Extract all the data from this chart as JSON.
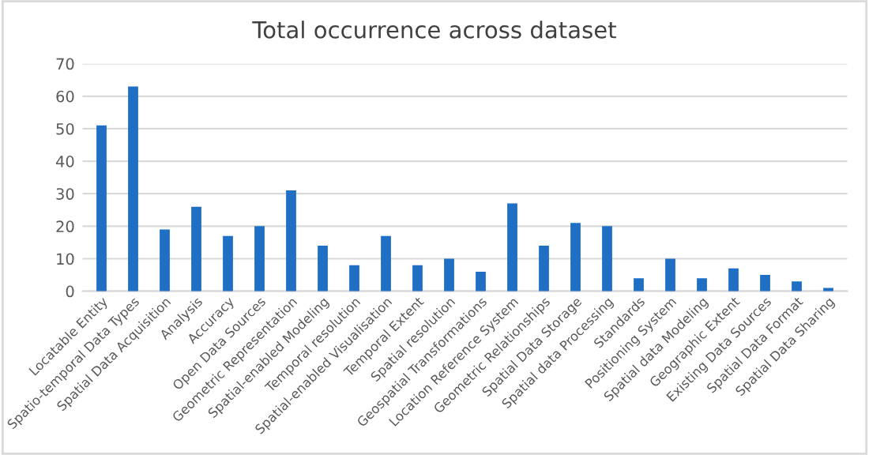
{
  "chart_data": {
    "type": "bar",
    "title": "Total occurrence across dataset",
    "categories": [
      "Locatable Entity",
      "Spatio-temporal Data Types",
      "Spatial Data Acquisition",
      "Analysis",
      "Accuracy",
      "Open Data Sources",
      "Geometric Representation",
      "Spatial-enabled Modeling",
      "Temporal resolution",
      "Spatial-enabled Visualisation",
      "Temporal Extent",
      "Spatial resolution",
      "Geospatial Transformations",
      "Location Reference System",
      "Geometric Relationships",
      "Spatial Data Storage",
      "Spatial data Processing",
      "Standards",
      "Positioning System",
      "Spatial data Modeling",
      "Geographic Extent",
      "Existing Data Sources",
      "Spatial Data Format",
      "Spatial Data Sharing"
    ],
    "values": [
      51,
      63,
      19,
      26,
      17,
      20,
      31,
      14,
      8,
      17,
      8,
      10,
      6,
      27,
      14,
      21,
      20,
      4,
      10,
      4,
      7,
      5,
      3,
      1
    ],
    "color": "#1f6fc5",
    "ylim": [
      0,
      70
    ],
    "yticks": [
      0,
      10,
      20,
      30,
      40,
      50,
      60,
      70
    ],
    "grid": "y",
    "legend": false
  }
}
